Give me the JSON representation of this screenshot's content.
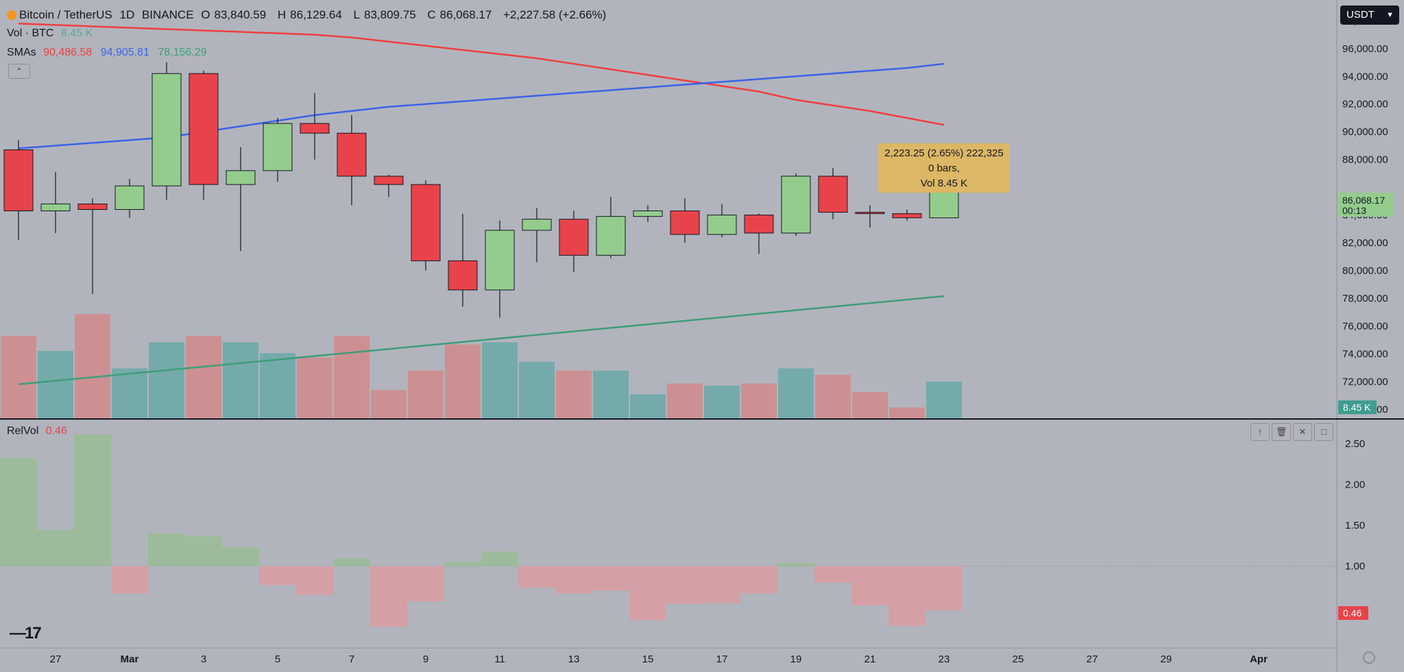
{
  "header": {
    "title": "Bitcoin / TetherUS",
    "interval": "1D",
    "exchange": "BINANCE",
    "ohlc": [
      {
        "label": "O",
        "value": "83,840.59"
      },
      {
        "label": "H",
        "value": "86,129.64"
      },
      {
        "label": "L",
        "value": "83,809.75"
      },
      {
        "label": "C",
        "value": "86,068.17"
      }
    ],
    "change": "+2,227.58 (+2.66%)",
    "currency": "USDT"
  },
  "volume_legend": {
    "label": "Vol · BTC",
    "value": "8.45 K"
  },
  "sma_legend": {
    "label": "SMAs",
    "values": [
      {
        "value": "90,486.58",
        "color": "#f03e3e"
      },
      {
        "value": "94,905.81",
        "color": "#3a62e8"
      },
      {
        "value": "78,156.29",
        "color": "#3e9d7a"
      }
    ]
  },
  "relvol_legend": {
    "label": "RelVol",
    "value": "0.46"
  },
  "tooltip": {
    "line1": "2,223.25 (2.65%) 222,325",
    "line2": "0 bars,",
    "line3": "Vol 8.45 K"
  },
  "price_badge": {
    "value": "86,068.17",
    "countdown": "00:13"
  },
  "volume_badge": "8.45 K",
  "relvol_badge": "0.46",
  "colors": {
    "background": "#b1b4bc",
    "up": "#93cc8c",
    "down": "#e8434a",
    "vol_up": "#6fa8a8",
    "vol_down": "#d08c8d",
    "relvol_up": "#9dbb9a",
    "relvol_down": "#d4a0a6",
    "sma_red": "#f03e3e",
    "sma_blue": "#3a62e8",
    "sma_green": "#3e9d7a",
    "badge_green": "#93cc8c",
    "badge_teal": "#3e9d8f",
    "badge_red": "#e8434a",
    "tooltip": "#dcb765"
  },
  "icons": [
    "bitcoin-icon",
    "chevron-up-icon",
    "chevron-down-icon",
    "arrow-up-icon",
    "trash-icon",
    "close-icon",
    "maximize-icon",
    "tradingview-logo-icon",
    "settings-icon"
  ],
  "chart_data": [
    {
      "type": "candlestick",
      "title": "Bitcoin / TetherUS 1D BINANCE",
      "x_axis_labels": [
        "27",
        "Mar",
        "3",
        "5",
        "7",
        "9",
        "11",
        "13",
        "15",
        "17",
        "19",
        "21",
        "23",
        "25",
        "27",
        "29",
        "Apr"
      ],
      "y_ticks": [
        "98,000.00",
        "96,000.00",
        "94,000.00",
        "92,000.00",
        "90,000.00",
        "88,000.00",
        "84,000.00",
        "82,000.00",
        "80,000.00",
        "78,000.00",
        "76,000.00",
        "74,000.00",
        "72,000.00",
        "70,000.00"
      ],
      "ylim": [
        69300,
        99500
      ],
      "dates": [
        "2025-02-26",
        "2025-02-27",
        "2025-02-28",
        "2025-03-01",
        "2025-03-02",
        "2025-03-03",
        "2025-03-04",
        "2025-03-05",
        "2025-03-06",
        "2025-03-07",
        "2025-03-08",
        "2025-03-09",
        "2025-03-10",
        "2025-03-11",
        "2025-03-12",
        "2025-03-13",
        "2025-03-14",
        "2025-03-15",
        "2025-03-16",
        "2025-03-17",
        "2025-03-18",
        "2025-03-19",
        "2025-03-20",
        "2025-03-21",
        "2025-03-22",
        "2025-03-23"
      ],
      "candles": [
        {
          "o": 88700,
          "h": 89400,
          "l": 82200,
          "c": 84300
        },
        {
          "o": 84300,
          "h": 87100,
          "l": 82700,
          "c": 84800
        },
        {
          "o": 84800,
          "h": 85200,
          "l": 78300,
          "c": 84400
        },
        {
          "o": 84400,
          "h": 86600,
          "l": 83800,
          "c": 86100
        },
        {
          "o": 86100,
          "h": 95000,
          "l": 85100,
          "c": 94200
        },
        {
          "o": 94200,
          "h": 94400,
          "l": 85100,
          "c": 86200
        },
        {
          "o": 86200,
          "h": 88900,
          "l": 81400,
          "c": 87200
        },
        {
          "o": 87200,
          "h": 91000,
          "l": 86400,
          "c": 90600
        },
        {
          "o": 90600,
          "h": 92800,
          "l": 88000,
          "c": 89900
        },
        {
          "o": 89900,
          "h": 91200,
          "l": 84700,
          "c": 86800
        },
        {
          "o": 86800,
          "h": 86900,
          "l": 85300,
          "c": 86200
        },
        {
          "o": 86200,
          "h": 86500,
          "l": 80000,
          "c": 80700
        },
        {
          "o": 80700,
          "h": 84100,
          "l": 77400,
          "c": 78600
        },
        {
          "o": 78600,
          "h": 83600,
          "l": 76600,
          "c": 82900
        },
        {
          "o": 82900,
          "h": 84500,
          "l": 80600,
          "c": 83700
        },
        {
          "o": 83700,
          "h": 84300,
          "l": 79900,
          "c": 81100
        },
        {
          "o": 81100,
          "h": 85300,
          "l": 80900,
          "c": 83900
        },
        {
          "o": 83900,
          "h": 84700,
          "l": 83500,
          "c": 84300
        },
        {
          "o": 84300,
          "h": 85200,
          "l": 82000,
          "c": 82600
        },
        {
          "o": 82600,
          "h": 84800,
          "l": 82400,
          "c": 84000
        },
        {
          "o": 84000,
          "h": 84100,
          "l": 81200,
          "c": 82700
        },
        {
          "o": 82700,
          "h": 87000,
          "l": 82500,
          "c": 86800
        },
        {
          "o": 86800,
          "h": 87400,
          "l": 83700,
          "c": 84200
        },
        {
          "o": 84200,
          "h": 84700,
          "l": 83100,
          "c": 84100
        },
        {
          "o": 84100,
          "h": 84400,
          "l": 83600,
          "c": 83800
        },
        {
          "o": 83800,
          "h": 86100,
          "l": 83800,
          "c": 86068
        }
      ],
      "sma_series": [
        {
          "values": [
            97800,
            97700,
            97600,
            97500,
            97400,
            97300,
            97200,
            97100,
            97000,
            96800,
            96500,
            96200,
            95900,
            95600,
            95300,
            94900,
            94500,
            94100,
            93700,
            93300,
            92900,
            92300,
            91900,
            91500,
            91000,
            90500
          ]
        },
        {
          "values": [
            88800,
            89000,
            89200,
            89400,
            89600,
            90000,
            90400,
            90800,
            91200,
            91500,
            91800,
            92000,
            92200,
            92400,
            92600,
            92800,
            93000,
            93200,
            93400,
            93600,
            93800,
            94000,
            94200,
            94400,
            94600,
            94900
          ]
        },
        {
          "values": [
            null,
            null,
            null,
            null,
            null,
            null,
            null,
            null,
            null,
            null,
            null,
            null,
            null,
            null,
            null,
            null,
            null,
            null,
            null,
            null,
            null,
            null,
            null,
            null,
            null,
            78156
          ]
        }
      ]
    },
    {
      "type": "bar",
      "title": "Vol · BTC",
      "values_k": [
        19,
        15.5,
        24,
        11.5,
        17.5,
        19,
        17.5,
        15,
        14,
        19,
        6.5,
        11,
        17,
        17.5,
        13,
        11,
        11,
        5.5,
        8,
        7.5,
        8,
        11.5,
        10,
        6,
        2.5,
        8.45
      ],
      "ymax_k": 24
    },
    {
      "type": "bar",
      "title": "RelVol",
      "baseline": 1.0,
      "y_ticks": [
        "2.50",
        "2.00",
        "1.50",
        "1.00"
      ],
      "ylim": [
        0.0,
        2.8
      ],
      "values": [
        2.32,
        1.44,
        2.61,
        0.67,
        1.4,
        1.37,
        1.23,
        0.77,
        0.65,
        1.09,
        0.26,
        0.57,
        1.05,
        1.18,
        0.74,
        0.67,
        0.7,
        0.34,
        0.54,
        0.55,
        0.67,
        1.04,
        0.8,
        0.52,
        0.27,
        0.46
      ]
    }
  ]
}
